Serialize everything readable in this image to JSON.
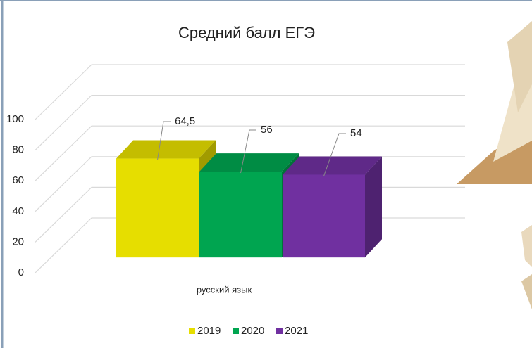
{
  "chart_data": {
    "type": "bar",
    "title": "Средний балл ЕГЭ",
    "categories": [
      "русский язык"
    ],
    "series": [
      {
        "name": "2019",
        "color": "#e6de00",
        "values": [
          64.5
        ],
        "value_labels": [
          "64,5"
        ]
      },
      {
        "name": "2020",
        "color": "#00a550",
        "values": [
          56
        ],
        "value_labels": [
          "56"
        ]
      },
      {
        "name": "2021",
        "color": "#7030a0",
        "values": [
          54
        ],
        "value_labels": [
          "54"
        ]
      }
    ],
    "ylim": [
      0,
      100
    ],
    "yticks": [
      0,
      20,
      40,
      60,
      80,
      100
    ],
    "grid": true,
    "legend": "bottom"
  }
}
